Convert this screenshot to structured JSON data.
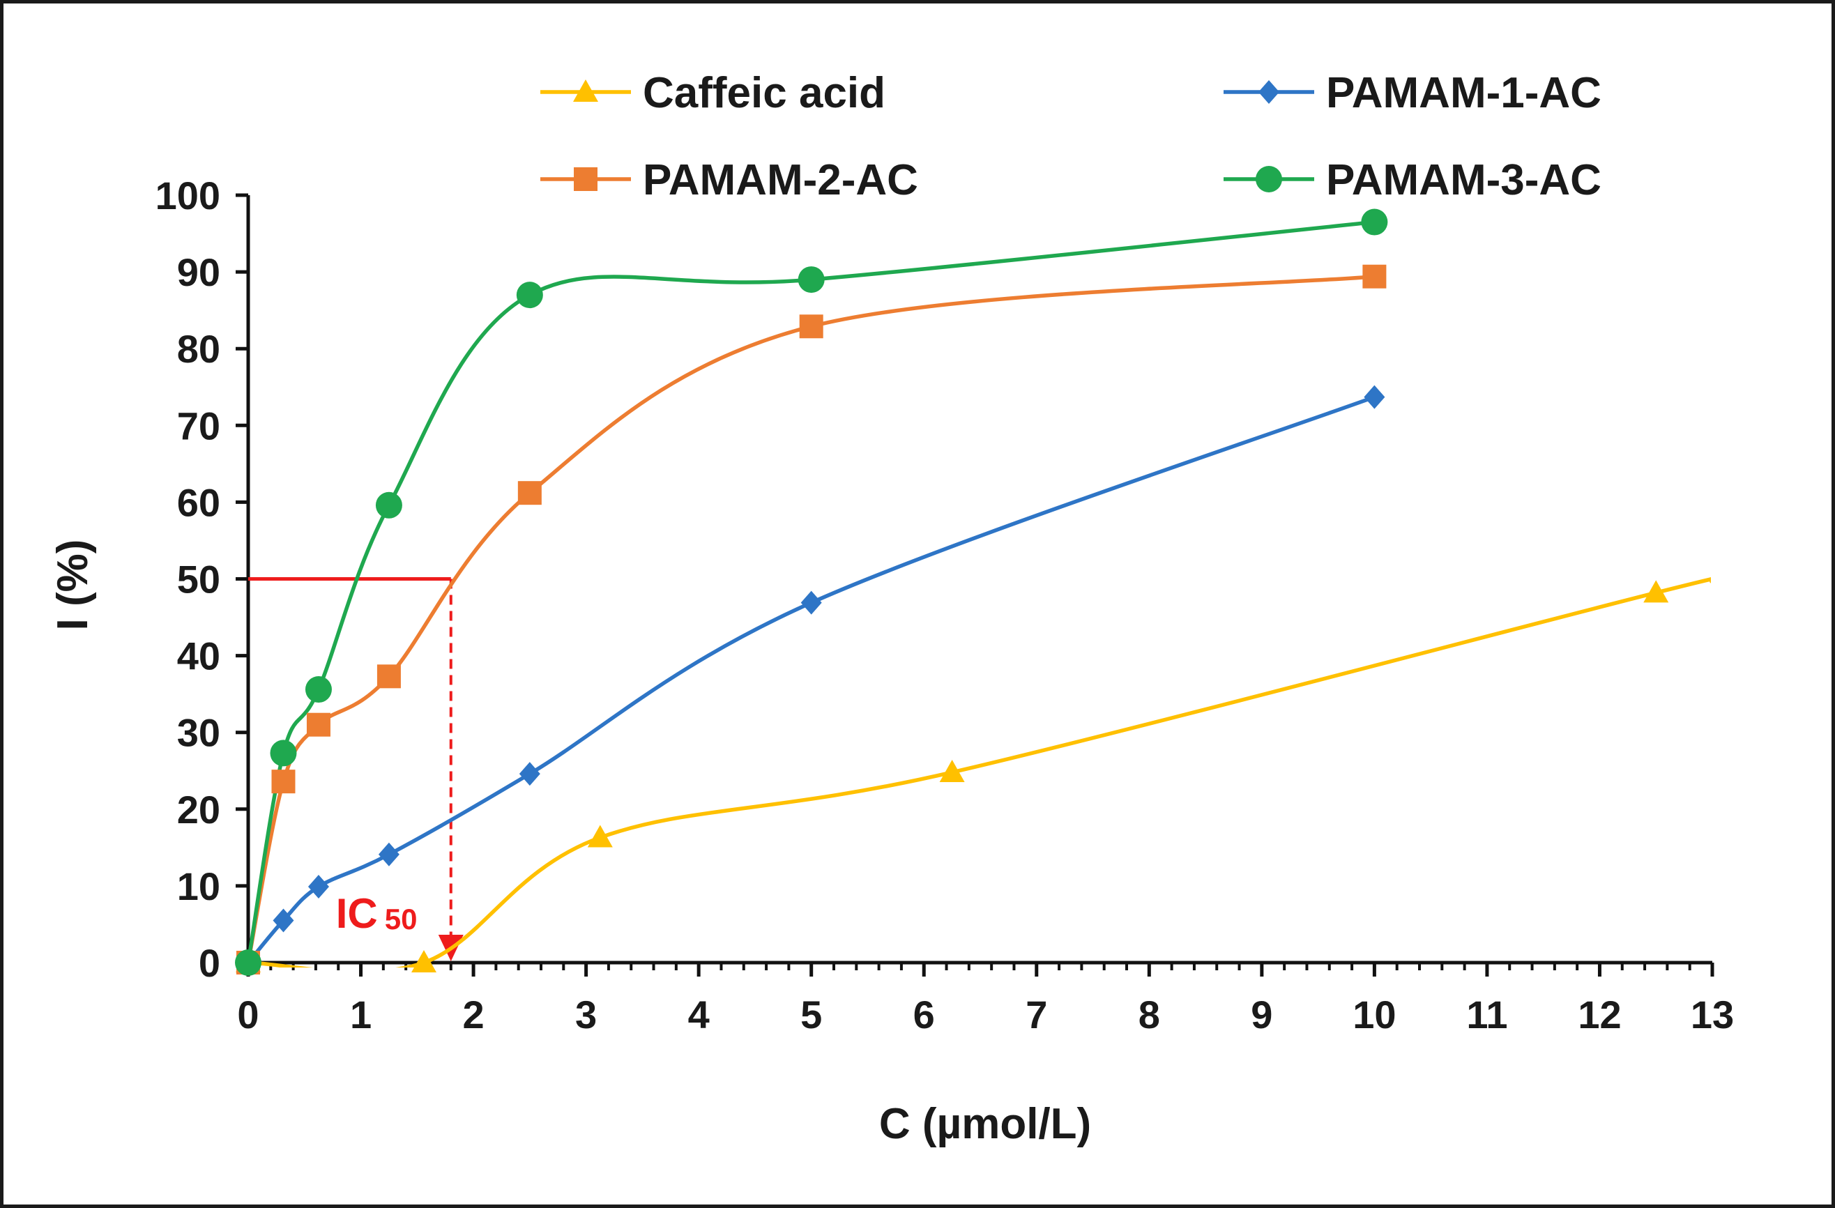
{
  "chart_data": {
    "type": "line",
    "title": "",
    "xlabel": "C (µmol/L)",
    "ylabel": "I (%)",
    "xlim": [
      0,
      13
    ],
    "ylim": [
      0,
      100
    ],
    "x_ticks": [
      0,
      1,
      2,
      3,
      4,
      5,
      6,
      7,
      8,
      9,
      10,
      11,
      12,
      13
    ],
    "y_ticks": [
      0,
      10,
      20,
      30,
      40,
      50,
      60,
      70,
      80,
      90,
      100
    ],
    "grid": false,
    "legend_position": "top",
    "series": [
      {
        "name": "Caffeic acid",
        "color": "#ffc000",
        "marker": "triangle",
        "x": [
          0,
          1.56,
          3.125,
          6.25,
          12.5
        ],
        "y": [
          0,
          0,
          16.3,
          24.8,
          48.2
        ],
        "extend_to": [
          13,
          49.7
        ]
      },
      {
        "name": "PAMAM-1-AC",
        "color": "#2e75c6",
        "marker": "diamond",
        "x": [
          0,
          0.3125,
          0.625,
          1.25,
          2.5,
          5,
          10
        ],
        "y": [
          0,
          5.5,
          9.9,
          14.1,
          24.6,
          46.9,
          73.7
        ]
      },
      {
        "name": "PAMAM-2-AC",
        "color": "#ed7d31",
        "marker": "square",
        "x": [
          0,
          0.3125,
          0.625,
          1.25,
          2.5,
          5,
          10
        ],
        "y": [
          0,
          23.6,
          31.0,
          37.3,
          61.2,
          82.9,
          89.4
        ]
      },
      {
        "name": "PAMAM-3-AC",
        "color": "#1fa84f",
        "marker": "circle",
        "x": [
          0,
          0.3125,
          0.625,
          1.25,
          2.5,
          5,
          10
        ],
        "y": [
          0,
          27.3,
          35.6,
          59.6,
          87.0,
          89.0,
          96.5
        ]
      }
    ],
    "annotation": {
      "label_main": "IC",
      "label_sub": "50",
      "color": "#ee1c1c",
      "x": 1.8,
      "y": 50
    }
  }
}
